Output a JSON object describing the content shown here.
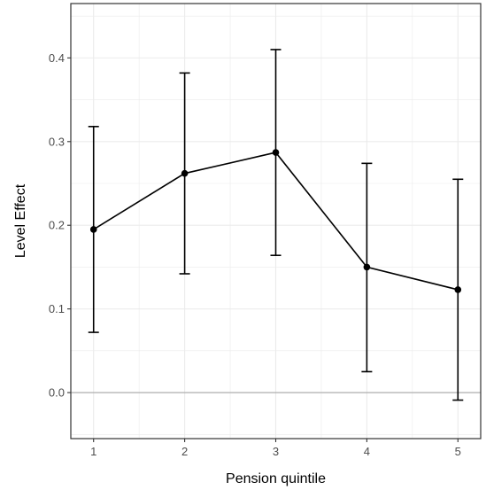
{
  "chart_data": {
    "type": "line",
    "title": "",
    "xlabel": "Pension quintile",
    "ylabel": "Level Effect",
    "x": [
      1,
      2,
      3,
      4,
      5
    ],
    "series": [
      {
        "values": [
          0.195,
          0.262,
          0.287,
          0.15,
          0.123
        ],
        "ci_lower": [
          0.072,
          0.142,
          0.164,
          0.025,
          -0.009
        ],
        "ci_upper": [
          0.318,
          0.382,
          0.41,
          0.274,
          0.255
        ]
      }
    ],
    "xlim": [
      0.75,
      5.25
    ],
    "ylim": [
      -0.055,
      0.465
    ],
    "xticks": [
      1,
      2,
      3,
      4,
      5
    ],
    "yticks": [
      0.0,
      0.1,
      0.2,
      0.3,
      0.4
    ],
    "xtick_labels": [
      "1",
      "2",
      "3",
      "4",
      "5"
    ],
    "ytick_labels": [
      "0.0",
      "0.1",
      "0.2",
      "0.3",
      "0.4"
    ],
    "reference_line_y": 0,
    "grid": true,
    "legend": "none",
    "colors": {
      "line": "#000000",
      "reference_line": "#a6a6a6",
      "grid": "#ebebeb",
      "panel_border": "#333333"
    }
  }
}
